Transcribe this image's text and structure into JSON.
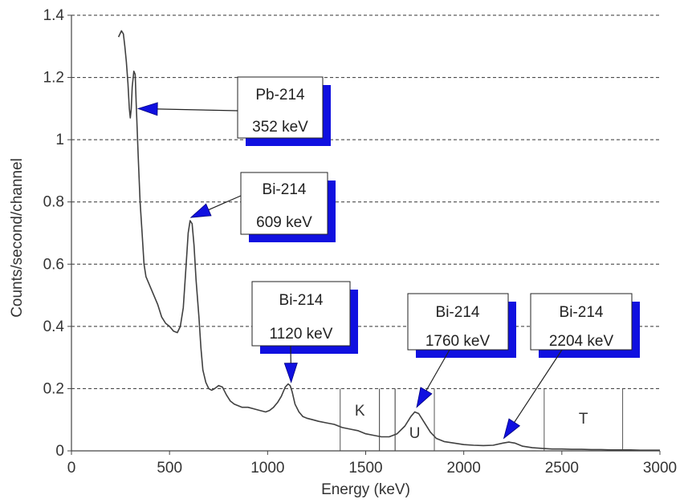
{
  "chart_data": {
    "type": "line",
    "xlabel": "Energy (keV)",
    "ylabel": "Counts/second/channel",
    "xlim": [
      0,
      3000
    ],
    "ylim": [
      0,
      1.4
    ],
    "x_ticks": [
      0,
      500,
      1000,
      1500,
      2000,
      2500,
      3000
    ],
    "x_tick_labels": [
      "0",
      "500",
      "1000",
      "1500",
      "2000",
      "2500",
      "3000"
    ],
    "y_ticks": [
      0,
      0.2,
      0.4,
      0.6,
      0.8,
      1,
      1.2,
      1.4
    ],
    "y_tick_labels": [
      "0",
      "0.2",
      "0.4",
      "0.6",
      "0.8",
      "1",
      "1.2",
      "1.4"
    ],
    "grid": "horizontal dashed",
    "series": [
      {
        "x": [
          240,
          255,
          265,
          272,
          280,
          288,
          295,
          300,
          305,
          310,
          318,
          325,
          330,
          340,
          350,
          360,
          370,
          380,
          400,
          420,
          440,
          460,
          480,
          500,
          520,
          540,
          555,
          570,
          585,
          595,
          605,
          615,
          625,
          635,
          650,
          660,
          670,
          685,
          700,
          715,
          730,
          750,
          770,
          790,
          810,
          830,
          850,
          870,
          900,
          930,
          960,
          990,
          1010,
          1030,
          1050,
          1070,
          1090,
          1105,
          1115,
          1125,
          1140,
          1160,
          1180,
          1200,
          1230,
          1260,
          1300,
          1340,
          1380,
          1420,
          1460,
          1500,
          1540,
          1580,
          1620,
          1660,
          1700,
          1730,
          1750,
          1770,
          1800,
          1830,
          1860,
          1900,
          1950,
          2000,
          2050,
          2100,
          2150,
          2200,
          2230,
          2260,
          2300,
          2350,
          2400,
          2450,
          2500,
          2550,
          2600,
          2650,
          2700,
          2750,
          2800,
          2850,
          2900,
          2950,
          3000
        ],
        "y": [
          1.33,
          1.35,
          1.34,
          1.3,
          1.25,
          1.18,
          1.1,
          1.07,
          1.1,
          1.17,
          1.22,
          1.21,
          1.12,
          0.95,
          0.8,
          0.7,
          0.6,
          0.56,
          0.53,
          0.5,
          0.47,
          0.43,
          0.41,
          0.4,
          0.385,
          0.38,
          0.4,
          0.46,
          0.6,
          0.7,
          0.74,
          0.73,
          0.66,
          0.55,
          0.43,
          0.33,
          0.26,
          0.22,
          0.2,
          0.195,
          0.2,
          0.21,
          0.205,
          0.18,
          0.16,
          0.15,
          0.145,
          0.14,
          0.14,
          0.135,
          0.13,
          0.125,
          0.13,
          0.14,
          0.155,
          0.175,
          0.205,
          0.215,
          0.21,
          0.19,
          0.15,
          0.125,
          0.11,
          0.105,
          0.1,
          0.095,
          0.09,
          0.085,
          0.075,
          0.07,
          0.065,
          0.055,
          0.05,
          0.045,
          0.045,
          0.055,
          0.08,
          0.11,
          0.125,
          0.12,
          0.09,
          0.06,
          0.04,
          0.03,
          0.025,
          0.02,
          0.018,
          0.017,
          0.018,
          0.025,
          0.028,
          0.025,
          0.015,
          0.01,
          0.008,
          0.006,
          0.006,
          0.005,
          0.005,
          0.004,
          0.004,
          0.003,
          0.003,
          0.003,
          0.002,
          0.002,
          0.002
        ]
      }
    ],
    "regions": [
      {
        "label": "K",
        "x_start": 1370,
        "x_end": 1570
      },
      {
        "label": "",
        "x_start": 1570,
        "x_end": 1650
      },
      {
        "label": "U",
        "x_start": 1650,
        "x_end": 1850
      },
      {
        "label": "T",
        "x_start": 2410,
        "x_end": 2810
      }
    ],
    "annotations": [
      {
        "isotope": "Pb-214",
        "energy": "352 keV",
        "x": 340,
        "y": 1.1
      },
      {
        "isotope": "Bi-214",
        "energy": "609 keV",
        "x": 609,
        "y": 0.75
      },
      {
        "isotope": "Bi-214",
        "energy": "1120 keV",
        "x": 1120,
        "y": 0.22
      },
      {
        "isotope": "Bi-214",
        "energy": "1760 keV",
        "x": 1760,
        "y": 0.14
      },
      {
        "isotope": "Bi-214",
        "energy": "2204 keV",
        "x": 2204,
        "y": 0.04
      }
    ],
    "colors": {
      "line": "#404040",
      "grid": "#333333",
      "shadow": "#1010e0",
      "arrow": "#1010e0",
      "axis": "#444444"
    }
  }
}
